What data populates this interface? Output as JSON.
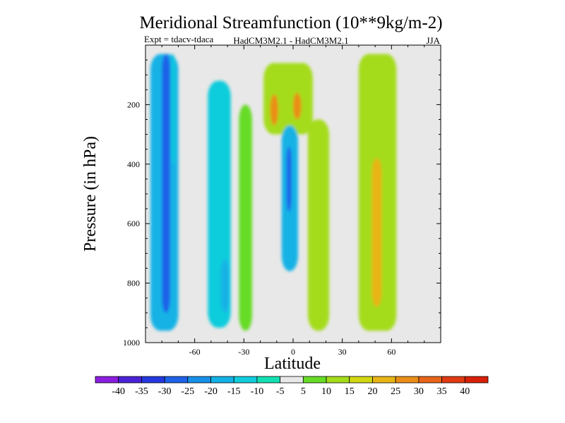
{
  "chart_data": {
    "type": "heatmap",
    "title": "Meridional Streamfunction (10**9kg/m-2)",
    "expt_label": "Expt = tdacv-tdaca",
    "subtitle": "HadCM3M2.1 - HadCM3M2.1",
    "season": "JJA",
    "xlabel": "Latitude",
    "ylabel": "Pressure (in hPa)",
    "xlim": [
      -90,
      90
    ],
    "ylim": [
      1000,
      0
    ],
    "x_ticks": [
      -60,
      -30,
      0,
      30,
      60
    ],
    "x_tick_labels": [
      "-60",
      "-30",
      "0",
      "30",
      "60"
    ],
    "y_ticks": [
      200,
      400,
      600,
      800,
      1000
    ],
    "y_tick_labels": [
      "200",
      "400",
      "600",
      "800",
      "1000"
    ],
    "colorbar": {
      "levels": [
        "-40",
        "-35",
        "-30",
        "-25",
        "-20",
        "-15",
        "-10",
        "-5",
        "5",
        "10",
        "15",
        "20",
        "25",
        "30",
        "35",
        "40"
      ],
      "colors": [
        "#8a1ee0",
        "#4b22d8",
        "#2538e0",
        "#1d62e8",
        "#1890e8",
        "#12b2e6",
        "#10ccdc",
        "#12e0b2",
        "#e8e8e8",
        "#66dc26",
        "#a4dc1a",
        "#d2d812",
        "#e8b416",
        "#ea8e18",
        "#e8641a",
        "#e03a12",
        "#d82008"
      ]
    },
    "regions": [
      {
        "name": "neg-band-80S",
        "lat": [
          -87,
          -70
        ],
        "p": [
          30,
          960
        ],
        "value": -15
      },
      {
        "name": "neg-core-80S",
        "lat": [
          -80,
          -75
        ],
        "p": [
          30,
          900
        ],
        "value": -25
      },
      {
        "name": "neg-streak-73S",
        "lat": [
          -74,
          -72
        ],
        "p": [
          30,
          400
        ],
        "value": -10
      },
      {
        "name": "neg-band-45S",
        "lat": [
          -52,
          -38
        ],
        "p": [
          120,
          950
        ],
        "value": -10
      },
      {
        "name": "neg-core-40S",
        "lat": [
          -44,
          -39
        ],
        "p": [
          720,
          900
        ],
        "value": -15
      },
      {
        "name": "pos-band-30S",
        "lat": [
          -33,
          -25
        ],
        "p": [
          200,
          960
        ],
        "value": 10
      },
      {
        "name": "pos-hadley-upper",
        "lat": [
          -18,
          12
        ],
        "p": [
          60,
          300
        ],
        "value": 15
      },
      {
        "name": "pos-core-12S",
        "lat": [
          -14,
          -9
        ],
        "p": [
          165,
          270
        ],
        "value": 30
      },
      {
        "name": "pos-core-2N",
        "lat": [
          0,
          5
        ],
        "p": [
          160,
          250
        ],
        "value": 30
      },
      {
        "name": "neg-cell-2S",
        "lat": [
          -7,
          3
        ],
        "p": [
          270,
          760
        ],
        "value": -15
      },
      {
        "name": "neg-core-2S",
        "lat": [
          -4,
          -1
        ],
        "p": [
          340,
          560
        ],
        "value": -25
      },
      {
        "name": "pos-band-15N",
        "lat": [
          9,
          22
        ],
        "p": [
          250,
          960
        ],
        "value": 15
      },
      {
        "name": "pos-band-50N",
        "lat": [
          40,
          63
        ],
        "p": [
          30,
          960
        ],
        "value": 15
      },
      {
        "name": "pos-core-50N",
        "lat": [
          48,
          54
        ],
        "p": [
          380,
          880
        ],
        "value": 25
      }
    ]
  }
}
